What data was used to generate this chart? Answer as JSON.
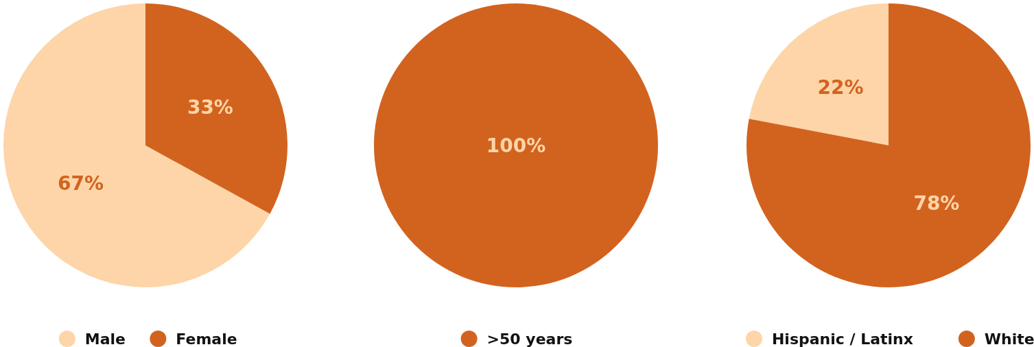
{
  "chart_data": [
    {
      "type": "pie",
      "categories": [
        "Male",
        "Female"
      ],
      "values": [
        67,
        33
      ],
      "colors": [
        "#fdd5a8",
        "#d2631f"
      ],
      "value_labels": [
        "67%",
        "33%"
      ],
      "legend": "bottom"
    },
    {
      "type": "pie",
      "categories": [
        ">50 years"
      ],
      "values": [
        100
      ],
      "colors": [
        "#d2631f"
      ],
      "value_labels": [
        "100%"
      ],
      "legend": "bottom"
    },
    {
      "type": "pie",
      "categories": [
        "Hispanic / Latinx",
        "White"
      ],
      "values": [
        22,
        78
      ],
      "colors": [
        "#fdd5a8",
        "#d2631f"
      ],
      "value_labels": [
        "22%",
        "78%"
      ],
      "legend": "bottom"
    }
  ]
}
